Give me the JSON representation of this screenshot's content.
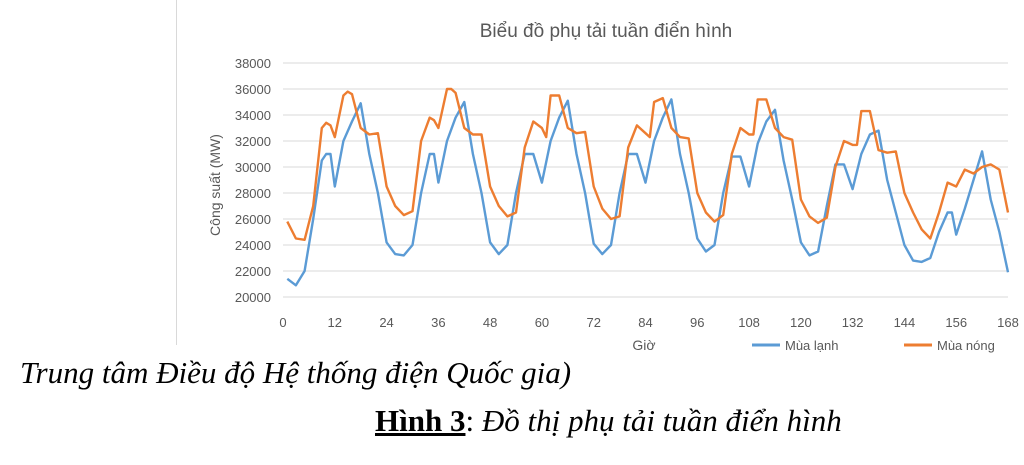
{
  "chart_data": {
    "type": "line",
    "title": "Biểu đồ phụ tải tuần điển hình",
    "xlabel": "Giờ",
    "ylabel": "Công suất (MW)",
    "xlim": [
      0,
      168
    ],
    "ylim": [
      20000,
      38000
    ],
    "x_ticks": [
      0,
      12,
      24,
      36,
      48,
      60,
      72,
      84,
      96,
      108,
      120,
      132,
      144,
      156,
      168
    ],
    "y_ticks": [
      20000,
      22000,
      24000,
      26000,
      28000,
      30000,
      32000,
      34000,
      36000,
      38000
    ],
    "grid": "horizontal",
    "legend_position": "bottom-right",
    "series": [
      {
        "name": "Mùa lạnh",
        "color": "#5b9bd5",
        "x": [
          1,
          3,
          5,
          7,
          9,
          10,
          11,
          12,
          14,
          16,
          18,
          20,
          22,
          24,
          26,
          28,
          30,
          32,
          34,
          35,
          36,
          38,
          40,
          42,
          44,
          46,
          48,
          50,
          52,
          54,
          56,
          58,
          60,
          62,
          64,
          66,
          68,
          70,
          72,
          74,
          76,
          78,
          80,
          82,
          84,
          86,
          88,
          90,
          92,
          94,
          96,
          98,
          100,
          102,
          104,
          106,
          108,
          110,
          112,
          114,
          116,
          118,
          120,
          122,
          124,
          126,
          128,
          130,
          132,
          134,
          136,
          138,
          140,
          142,
          144,
          146,
          148,
          150,
          152,
          154,
          155,
          156,
          158,
          160,
          162,
          164,
          166,
          168
        ],
        "values": [
          21400,
          20900,
          22000,
          26000,
          30500,
          31000,
          31000,
          28500,
          32000,
          33500,
          34900,
          31000,
          28000,
          24200,
          23300,
          23200,
          24000,
          28000,
          31000,
          31000,
          28800,
          32000,
          33800,
          35000,
          31000,
          28000,
          24200,
          23300,
          24000,
          28000,
          31000,
          31000,
          28800,
          32000,
          33800,
          35100,
          31000,
          28000,
          24100,
          23300,
          24000,
          28000,
          31000,
          31000,
          28800,
          32000,
          33800,
          35200,
          31000,
          28000,
          24500,
          23500,
          24000,
          28000,
          30800,
          30800,
          28500,
          31800,
          33500,
          34400,
          30500,
          27500,
          24200,
          23200,
          23500,
          27000,
          30200,
          30200,
          28300,
          31000,
          32500,
          32800,
          29000,
          26500,
          24000,
          22800,
          22700,
          23000,
          25000,
          26500,
          26500,
          24800,
          26800,
          29000,
          31200,
          27500,
          25000,
          21900
        ]
      },
      {
        "name": "Mùa nóng",
        "color": "#ed7d31",
        "x": [
          1,
          3,
          5,
          7,
          9,
          10,
          11,
          12,
          14,
          15,
          16,
          18,
          20,
          22,
          24,
          26,
          28,
          30,
          32,
          34,
          35,
          36,
          38,
          39,
          40,
          42,
          44,
          46,
          48,
          50,
          52,
          54,
          56,
          58,
          60,
          61,
          62,
          64,
          66,
          68,
          70,
          72,
          74,
          76,
          78,
          80,
          82,
          84,
          85,
          86,
          88,
          90,
          92,
          94,
          96,
          98,
          100,
          102,
          104,
          106,
          108,
          109,
          110,
          112,
          114,
          116,
          118,
          120,
          122,
          124,
          126,
          128,
          130,
          132,
          133,
          134,
          136,
          138,
          140,
          142,
          144,
          146,
          148,
          150,
          152,
          154,
          156,
          158,
          160,
          162,
          164,
          166,
          168
        ],
        "values": [
          25800,
          24500,
          24400,
          27000,
          33000,
          33400,
          33200,
          32300,
          35500,
          35800,
          35600,
          33000,
          32500,
          32600,
          28500,
          27000,
          26300,
          26600,
          32000,
          33800,
          33600,
          33000,
          36000,
          36000,
          35700,
          33000,
          32500,
          32500,
          28500,
          27000,
          26200,
          26500,
          31500,
          33500,
          33000,
          32300,
          35500,
          35500,
          33000,
          32600,
          32700,
          28500,
          26800,
          26000,
          26200,
          31500,
          33200,
          32600,
          32300,
          35000,
          35300,
          33000,
          32300,
          32200,
          28000,
          26500,
          25800,
          26300,
          31000,
          33000,
          32500,
          32500,
          35200,
          35200,
          33000,
          32300,
          32100,
          27500,
          26200,
          25700,
          26100,
          30000,
          32000,
          31700,
          31700,
          34300,
          34300,
          31300,
          31100,
          31200,
          28000,
          26500,
          25200,
          24500,
          26500,
          28800,
          28500,
          29800,
          29500,
          30000,
          30200,
          29800,
          26500
        ]
      }
    ]
  },
  "captions": {
    "source": "Trung tâm Điều độ Hệ thống điện Quốc gia)",
    "figure_number": "Hình 3",
    "separator": ": ",
    "figure_title": "Đồ thị phụ tải tuần điển hình"
  }
}
